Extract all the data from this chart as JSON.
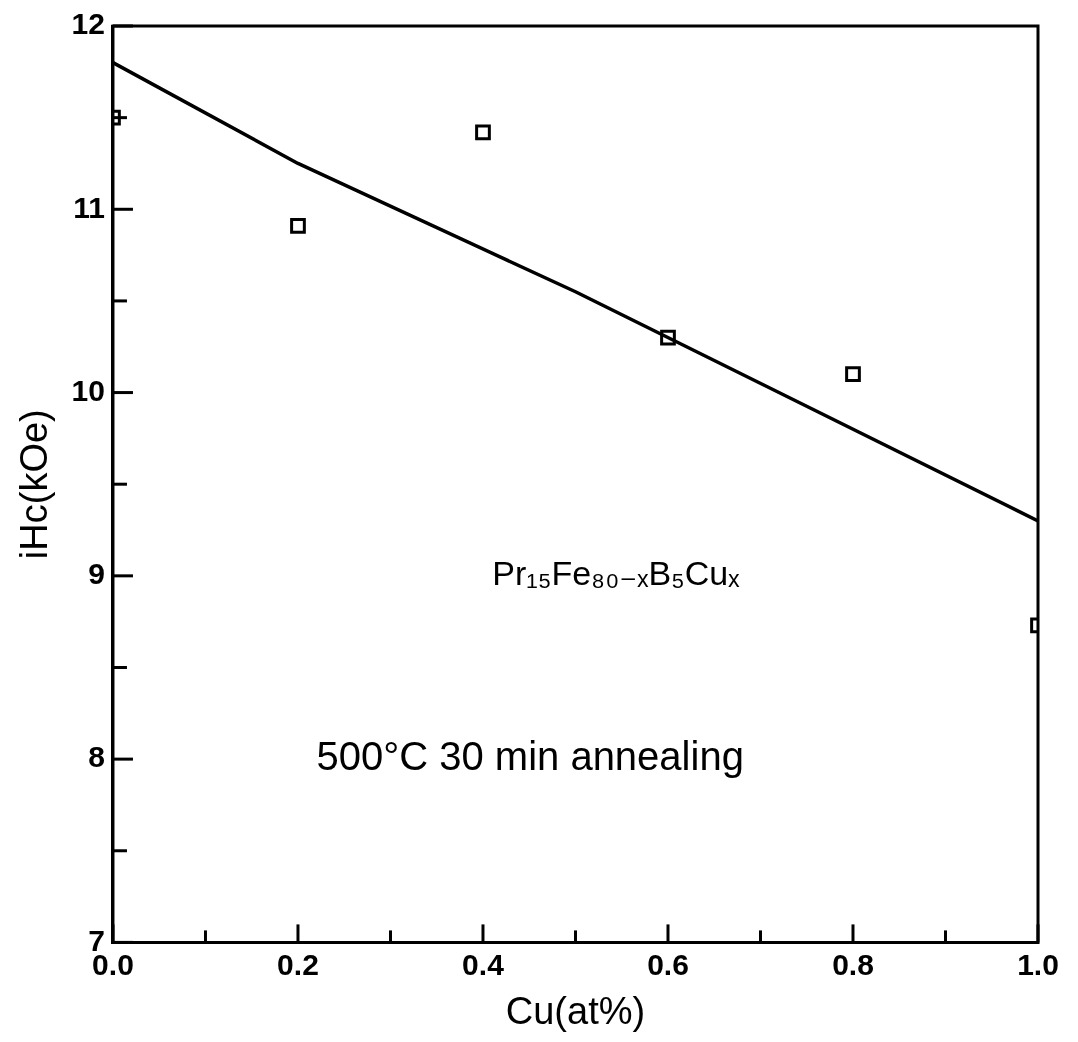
{
  "chart_data": {
    "type": "scatter",
    "xlabel": "Cu(at%)",
    "ylabel": "iHc(kOe)",
    "xlim": [
      0,
      1.0
    ],
    "ylim": [
      7,
      12
    ],
    "xticks": [
      {
        "value": 0,
        "label": "0.0"
      },
      {
        "value": 0.1,
        "label": null
      },
      {
        "value": 0.2,
        "label": "0.2"
      },
      {
        "value": 0.3,
        "label": null
      },
      {
        "value": 0.4,
        "label": "0.4"
      },
      {
        "value": 0.5,
        "label": null
      },
      {
        "value": 0.6,
        "label": "0.6"
      },
      {
        "value": 0.7,
        "label": null
      },
      {
        "value": 0.8,
        "label": "0.8"
      },
      {
        "value": 0.9,
        "label": null
      },
      {
        "value": 1.0,
        "label": "1.0"
      }
    ],
    "yticks": [
      7,
      {
        "value": 7.5,
        "label": null
      },
      8,
      {
        "value": 8.5,
        "label": null
      },
      9,
      {
        "value": 9.5,
        "label": null
      },
      10,
      {
        "value": 10.5,
        "label": null
      },
      11,
      {
        "value": 11.5,
        "label": null
      },
      12
    ],
    "grid": false,
    "series": [
      {
        "type": "scatter",
        "marker": "square",
        "color": "#000000",
        "x": [
          0,
          0.2,
          0.4,
          0.6,
          0.8,
          1.0
        ],
        "values": [
          11.5,
          10.91,
          11.42,
          10.3,
          10.1,
          8.73
        ]
      },
      {
        "type": "line",
        "marker": "none",
        "line_style": "solid",
        "color": "#000000",
        "x": [
          0,
          0.2,
          0.5,
          1.0
        ],
        "values": [
          11.8,
          11.25,
          10.55,
          9.3
        ]
      }
    ],
    "annotations": [
      "Pr₁₅Fe₈₀₋ₓB₅Cuₓ",
      "500°C 30 min annealing"
    ]
  }
}
